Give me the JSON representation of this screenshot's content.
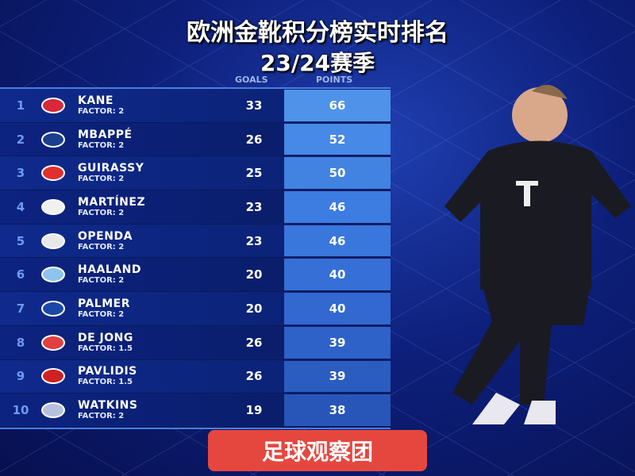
{
  "header": {
    "title": "欧洲金靴积分榜实时排名",
    "season": "23/24赛季"
  },
  "columns": {
    "goals": "GOALS",
    "points": "POINTS"
  },
  "rows": [
    {
      "rank": "1",
      "name": "KANE",
      "factor": "FACTOR: 2",
      "goals": "33",
      "points": "66",
      "club_icon": "bayern-logo",
      "logo_color": "#d8283a",
      "points_color": "#4f92ea"
    },
    {
      "rank": "2",
      "name": "MBAPPÉ",
      "factor": "FACTOR: 2",
      "goals": "26",
      "points": "52",
      "club_icon": "psg-logo",
      "logo_color": "#1a3f8c",
      "points_color": "#4689e6"
    },
    {
      "rank": "3",
      "name": "GUIRASSY",
      "factor": "FACTOR: 2",
      "goals": "25",
      "points": "50",
      "club_icon": "stuttgart-logo",
      "logo_color": "#e0302e",
      "points_color": "#4283e2"
    },
    {
      "rank": "4",
      "name": "MARTÍNEZ",
      "factor": "FACTOR: 2",
      "goals": "23",
      "points": "46",
      "club_icon": "inter-logo",
      "logo_color": "#f0f0f0",
      "points_color": "#3d7ce0"
    },
    {
      "rank": "5",
      "name": "OPENDA",
      "factor": "FACTOR: 2",
      "goals": "23",
      "points": "46",
      "club_icon": "leipzig-logo",
      "logo_color": "#e8e8e8",
      "points_color": "#3a77dc"
    },
    {
      "rank": "6",
      "name": "HAALAND",
      "factor": "FACTOR: 2",
      "goals": "20",
      "points": "40",
      "club_icon": "man-city-logo",
      "logo_color": "#8cc4ee",
      "points_color": "#366fd6"
    },
    {
      "rank": "7",
      "name": "PALMER",
      "factor": "FACTOR: 2",
      "goals": "20",
      "points": "40",
      "club_icon": "chelsea-logo",
      "logo_color": "#1b48a8",
      "points_color": "#3268d0"
    },
    {
      "rank": "8",
      "name": "DE JONG",
      "factor": "FACTOR: 1.5",
      "goals": "26",
      "points": "39",
      "club_icon": "psv-logo",
      "logo_color": "#e04040",
      "points_color": "#2e62c8"
    },
    {
      "rank": "9",
      "name": "PAVLIDIS",
      "factor": "FACTOR: 1.5",
      "goals": "26",
      "points": "39",
      "club_icon": "az-logo",
      "logo_color": "#d02020",
      "points_color": "#2b5cc0"
    },
    {
      "rank": "10",
      "name": "WATKINS",
      "factor": "FACTOR: 2",
      "goals": "19",
      "points": "38",
      "club_icon": "aston-villa-logo",
      "logo_color": "#b8c0e0",
      "points_color": "#2856b8"
    }
  ],
  "brand": {
    "label": "足球观察团",
    "color": "#e5473f"
  }
}
